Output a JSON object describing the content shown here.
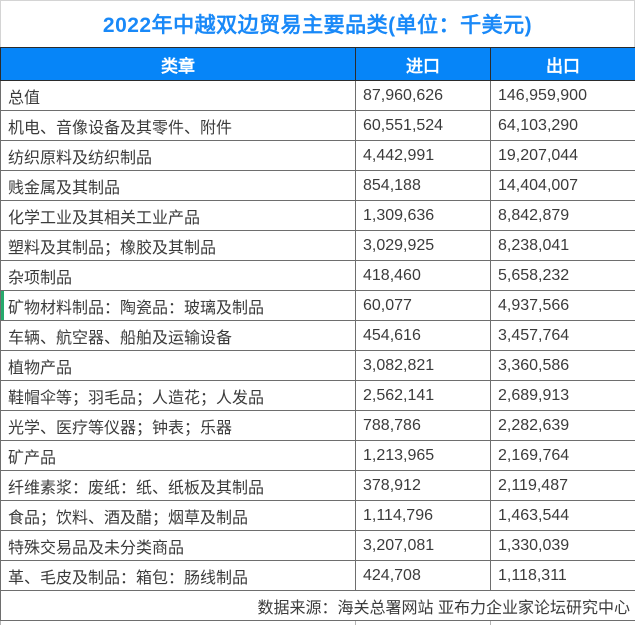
{
  "title": "2022年中越双边贸易主要品类(单位：千美元)",
  "colors": {
    "title_blue": "#1989f8",
    "header_bg": "#0685f8",
    "header_text": "#ffffff",
    "accent_green": "#26a96c",
    "body_text": "#3b3b3b"
  },
  "table": {
    "headers": [
      "类章",
      "进口",
      "出口"
    ],
    "rows": [
      {
        "category": "总值",
        "import": "87,960,626",
        "export": "146,959,900"
      },
      {
        "category": "机电、音像设备及其零件、附件",
        "import": "60,551,524",
        "export": "64,103,290"
      },
      {
        "category": "纺织原料及纺织制品",
        "import": "4,442,991",
        "export": "19,207,044"
      },
      {
        "category": "贱金属及其制品",
        "import": "854,188",
        "export": "14,404,007"
      },
      {
        "category": "化学工业及其相关工业产品",
        "import": "1,309,636",
        "export": "8,842,879"
      },
      {
        "category": "塑料及其制品；橡胶及其制品",
        "import": "3,029,925",
        "export": "8,238,041"
      },
      {
        "category": "杂项制品",
        "import": "418,460",
        "export": "5,658,232"
      },
      {
        "category": "矿物材料制品：陶瓷品：玻璃及制品",
        "import": "60,077",
        "export": "4,937,566"
      },
      {
        "category": "车辆、航空器、船舶及运输设备",
        "import": "454,616",
        "export": "3,457,764"
      },
      {
        "category": "植物产品",
        "import": "3,082,821",
        "export": "3,360,586"
      },
      {
        "category": "鞋帽伞等；羽毛品；人造花；人发品",
        "import": "2,562,141",
        "export": "2,689,913"
      },
      {
        "category": "光学、医疗等仪器；钟表；乐器",
        "import": "788,786",
        "export": "2,282,639"
      },
      {
        "category": "矿产品",
        "import": "1,213,965",
        "export": "2,169,764"
      },
      {
        "category": "纤维素浆：废纸：纸、纸板及其制品",
        "import": "378,912",
        "export": "2,119,487"
      },
      {
        "category": "食品；饮料、酒及醋；烟草及制品",
        "import": "1,114,796",
        "export": "1,463,544"
      },
      {
        "category": "特殊交易品及未分类商品",
        "import": "3,207,081",
        "export": "1,330,039"
      },
      {
        "category": "革、毛皮及制品：箱包：肠线制品",
        "import": "424,708",
        "export": "1,118,311"
      }
    ]
  },
  "footer": {
    "source": "数据来源：海关总署网站 亚布力企业家论坛研究中心"
  },
  "chart_data": {
    "type": "table",
    "title": "2022年中越双边贸易主要品类(单位：千美元)",
    "unit": "千美元",
    "columns": [
      "类章",
      "进口",
      "出口"
    ],
    "categories": [
      "总值",
      "机电、音像设备及其零件、附件",
      "纺织原料及纺织制品",
      "贱金属及其制品",
      "化学工业及其相关工业产品",
      "塑料及其制品；橡胶及其制品",
      "杂项制品",
      "矿物材料制品：陶瓷品：玻璃及制品",
      "车辆、航空器、船舶及运输设备",
      "植物产品",
      "鞋帽伞等；羽毛品；人造花；人发品",
      "光学、医疗等仪器；钟表；乐器",
      "矿产品",
      "纤维素浆：废纸：纸、纸板及其制品",
      "食品；饮料、酒及醋；烟草及制品",
      "特殊交易品及未分类商品",
      "革、毛皮及制品：箱包：肠线制品"
    ],
    "series": [
      {
        "name": "进口",
        "values": [
          87960626,
          60551524,
          4442991,
          854188,
          1309636,
          3029925,
          418460,
          60077,
          454616,
          3082821,
          2562141,
          788786,
          1213965,
          378912,
          1114796,
          3207081,
          424708
        ]
      },
      {
        "name": "出口",
        "values": [
          146959900,
          64103290,
          19207044,
          14404007,
          8842879,
          8238041,
          5658232,
          4937566,
          3457764,
          3360586,
          2689913,
          2282639,
          2169764,
          2119487,
          1463544,
          1330039,
          1118311
        ]
      }
    ],
    "source": "数据来源：海关总署网站 亚布力企业家论坛研究中心"
  }
}
